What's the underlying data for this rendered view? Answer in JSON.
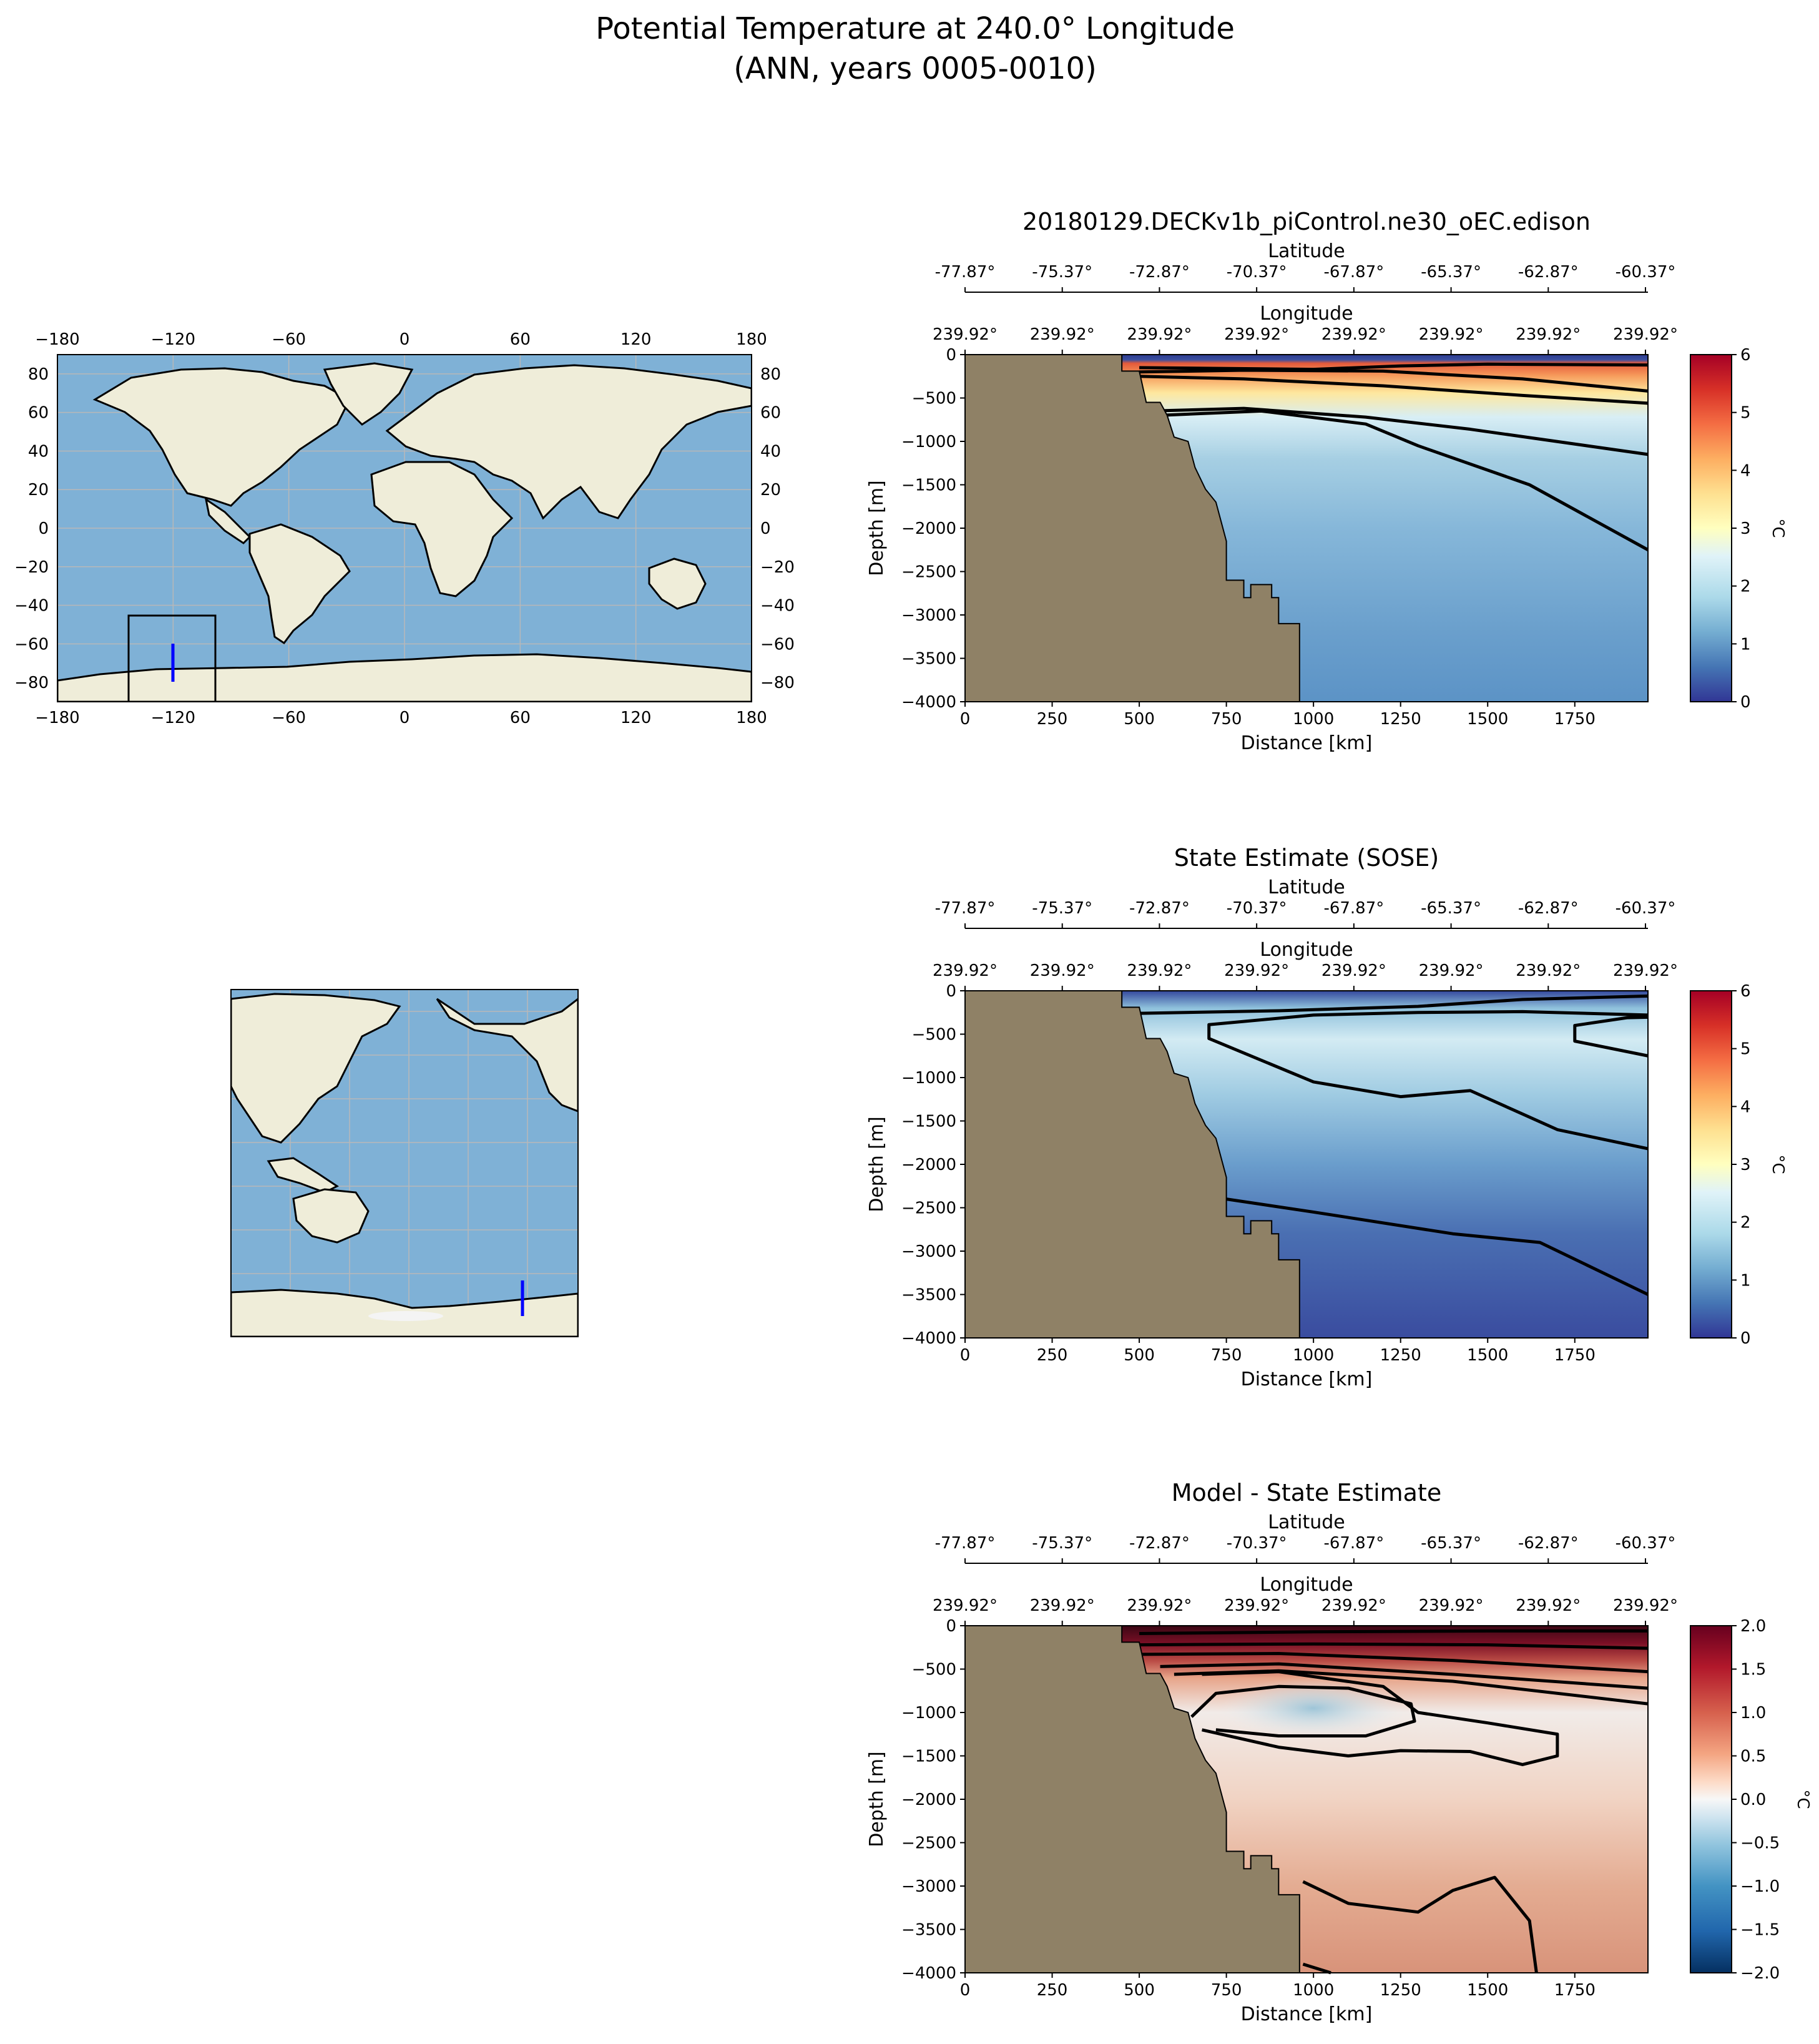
{
  "figure": {
    "title_line1": "Potential Temperature at 240.0° Longitude",
    "title_line2": "(ANN, years 0005-0010)"
  },
  "map": {
    "lon_ticks": [
      "−180",
      "−120",
      "−60",
      "0",
      "60",
      "120",
      "180"
    ],
    "lat_ticks": [
      "80",
      "60",
      "40",
      "20",
      "0",
      "−20",
      "−40",
      "−60",
      "−80"
    ],
    "section_lon": 240,
    "section_lat_range": [
      -77.87,
      -60.37
    ],
    "region_box": {
      "lon": [
        -145,
        -100
      ],
      "lat": [
        -90,
        -45
      ]
    }
  },
  "colorbars": {
    "temp": {
      "ticks": [
        "0",
        "1",
        "2",
        "3",
        "4",
        "5",
        "6"
      ],
      "unit": "°C"
    },
    "diff": {
      "ticks": [
        "−2.0",
        "−1.5",
        "−1.0",
        "−0.5",
        "0.0",
        "0.5",
        "1.0",
        "1.5",
        "2.0"
      ],
      "unit": "°C"
    }
  },
  "chart_data": [
    {
      "type": "heatmap",
      "title": "20180129.DECKv1b_piControl.ne30_oEC.edison",
      "xlabel": "Distance [km]",
      "ylabel": "Depth [m]",
      "top_axis_1_label": "Latitude",
      "top_axis_2_label": "Longitude",
      "lat_ticks": [
        "-77.87°",
        "-75.37°",
        "-72.87°",
        "-70.37°",
        "-67.87°",
        "-65.37°",
        "-62.87°",
        "-60.37°"
      ],
      "lon_ticks": [
        "239.92°",
        "239.92°",
        "239.92°",
        "239.92°",
        "239.92°",
        "239.92°",
        "239.92°",
        "239.92°"
      ],
      "x_ticks": [
        "0",
        "250",
        "500",
        "750",
        "1000",
        "1250",
        "1500",
        "1750"
      ],
      "y_ticks": [
        "0",
        "−500",
        "−1000",
        "−1500",
        "−2000",
        "−2500",
        "−3000",
        "−3500",
        "−4000"
      ],
      "xlim": [
        0,
        1960
      ],
      "ylim": [
        -4000,
        0
      ],
      "colorbar": {
        "label": "°C",
        "range": [
          0,
          6
        ],
        "colormap": "RdYlBu_r"
      },
      "contours": [
        {
          "level": 0.5,
          "points": [
            [
              500,
              -150
            ],
            [
              1000,
              -170
            ],
            [
              1250,
              -130
            ],
            [
              1500,
              -110
            ],
            [
              1960,
              -120
            ]
          ]
        },
        {
          "level": 2.5,
          "points": [
            [
              500,
              -200
            ],
            [
              800,
              -180
            ],
            [
              1200,
              -190
            ],
            [
              1600,
              -280
            ],
            [
              1960,
              -420
            ]
          ]
        },
        {
          "level": 2.0,
          "points": [
            [
              500,
              -250
            ],
            [
              800,
              -280
            ],
            [
              1200,
              -360
            ],
            [
              1600,
              -470
            ],
            [
              1960,
              -560
            ]
          ]
        },
        {
          "level": 1.5,
          "points": [
            [
              530,
              -650
            ],
            [
              800,
              -620
            ],
            [
              1150,
              -720
            ],
            [
              1450,
              -860
            ],
            [
              1960,
              -1150
            ]
          ]
        },
        {
          "level": 1.0,
          "points": [
            [
              560,
              -700
            ],
            [
              850,
              -650
            ],
            [
              1150,
              -800
            ],
            [
              1300,
              -1050
            ],
            [
              1620,
              -1500
            ],
            [
              1960,
              -2250
            ]
          ]
        }
      ]
    },
    {
      "type": "heatmap",
      "title": "State Estimate (SOSE)",
      "xlabel": "Distance [km]",
      "ylabel": "Depth [m]",
      "top_axis_1_label": "Latitude",
      "top_axis_2_label": "Longitude",
      "lat_ticks": [
        "-77.87°",
        "-75.37°",
        "-72.87°",
        "-70.37°",
        "-67.87°",
        "-65.37°",
        "-62.87°",
        "-60.37°"
      ],
      "lon_ticks": [
        "239.92°",
        "239.92°",
        "239.92°",
        "239.92°",
        "239.92°",
        "239.92°",
        "239.92°",
        "239.92°"
      ],
      "x_ticks": [
        "0",
        "250",
        "500",
        "750",
        "1000",
        "1250",
        "1500",
        "1750"
      ],
      "y_ticks": [
        "0",
        "−500",
        "−1000",
        "−1500",
        "−2000",
        "−2500",
        "−3000",
        "−3500",
        "−4000"
      ],
      "xlim": [
        0,
        1960
      ],
      "ylim": [
        -4000,
        0
      ],
      "colorbar": {
        "label": "°C",
        "range": [
          0,
          6
        ],
        "colormap": "RdYlBu_r"
      },
      "contours": [
        {
          "level": 0.5,
          "points": [
            [
              500,
              -260
            ],
            [
              900,
              -230
            ],
            [
              1300,
              -180
            ],
            [
              1600,
              -100
            ],
            [
              1960,
              -60
            ]
          ]
        },
        {
          "level": 1.5,
          "points": [
            [
              1960,
              -750
            ],
            [
              1750,
              -580
            ],
            [
              1750,
              -400
            ],
            [
              1900,
              -310
            ],
            [
              1960,
              -305
            ]
          ]
        },
        {
          "level": 1.0,
          "points": [
            [
              1960,
              -1820
            ],
            [
              1700,
              -1600
            ],
            [
              1450,
              -1150
            ],
            [
              1250,
              -1220
            ],
            [
              1000,
              -1050
            ],
            [
              700,
              -550
            ],
            [
              700,
              -390
            ],
            [
              1000,
              -280
            ],
            [
              1300,
              -250
            ],
            [
              1600,
              -240
            ],
            [
              1960,
              -280
            ]
          ]
        },
        {
          "level": 0.5,
          "points": [
            [
              750,
              -2400
            ],
            [
              1000,
              -2550
            ],
            [
              1400,
              -2800
            ],
            [
              1650,
              -2900
            ],
            [
              1960,
              -3500
            ]
          ]
        }
      ]
    },
    {
      "type": "heatmap",
      "title": "Model - State Estimate",
      "xlabel": "Distance [km]",
      "ylabel": "Depth [m]",
      "top_axis_1_label": "Latitude",
      "top_axis_2_label": "Longitude",
      "lat_ticks": [
        "-77.87°",
        "-75.37°",
        "-72.87°",
        "-70.37°",
        "-67.87°",
        "-65.37°",
        "-62.87°",
        "-60.37°"
      ],
      "lon_ticks": [
        "239.92°",
        "239.92°",
        "239.92°",
        "239.92°",
        "239.92°",
        "239.92°",
        "239.92°",
        "239.92°"
      ],
      "x_ticks": [
        "0",
        "250",
        "500",
        "750",
        "1000",
        "1250",
        "1500",
        "1750"
      ],
      "y_ticks": [
        "0",
        "−500",
        "−1000",
        "−1500",
        "−2000",
        "−2500",
        "−3000",
        "−3500",
        "−4000"
      ],
      "xlim": [
        0,
        1960
      ],
      "ylim": [
        -4000,
        0
      ],
      "colorbar": {
        "label": "°C",
        "range": [
          -2,
          2
        ],
        "colormap": "RdBu_r"
      },
      "contours": [
        {
          "level": 1.5,
          "points": [
            [
              500,
              -90
            ],
            [
              1000,
              -70
            ],
            [
              1500,
              -60
            ],
            [
              1960,
              -60
            ]
          ]
        },
        {
          "level": 1.0,
          "points": [
            [
              500,
              -220
            ],
            [
              1000,
              -210
            ],
            [
              1500,
              -220
            ],
            [
              1960,
              -260
            ]
          ]
        },
        {
          "level": 0.75,
          "points": [
            [
              500,
              -330
            ],
            [
              900,
              -320
            ],
            [
              1400,
              -400
            ],
            [
              1960,
              -530
            ]
          ]
        },
        {
          "level": 0.5,
          "points": [
            [
              560,
              -470
            ],
            [
              900,
              -440
            ],
            [
              1400,
              -560
            ],
            [
              1960,
              -720
            ]
          ]
        },
        {
          "level": 0.25,
          "points": [
            [
              600,
              -560
            ],
            [
              900,
              -520
            ],
            [
              1400,
              -640
            ],
            [
              1960,
              -900
            ]
          ]
        },
        {
          "level": -0.25,
          "points": [
            [
              650,
              -1050
            ],
            [
              720,
              -780
            ],
            [
              900,
              -700
            ],
            [
              1100,
              -720
            ],
            [
              1280,
              -900
            ],
            [
              1290,
              -1100
            ],
            [
              1150,
              -1270
            ],
            [
              900,
              -1270
            ],
            [
              720,
              -1200
            ]
          ]
        },
        {
          "level": 0.0,
          "points": [
            [
              680,
              -1200
            ],
            [
              900,
              -1400
            ],
            [
              1100,
              -1500
            ],
            [
              1250,
              -1440
            ],
            [
              1450,
              -1450
            ],
            [
              1600,
              -1600
            ],
            [
              1700,
              -1500
            ],
            [
              1700,
              -1250
            ],
            [
              1500,
              -1120
            ],
            [
              1300,
              -1000
            ],
            [
              1200,
              -700
            ],
            [
              900,
              -530
            ],
            [
              680,
              -560
            ]
          ]
        },
        {
          "level": 0.25,
          "points": [
            [
              970,
              -2950
            ],
            [
              1100,
              -3200
            ],
            [
              1300,
              -3300
            ],
            [
              1400,
              -3050
            ],
            [
              1520,
              -2900
            ],
            [
              1620,
              -3400
            ],
            [
              1640,
              -4000
            ]
          ]
        },
        {
          "level": 0.25,
          "points": [
            [
              970,
              -3900
            ],
            [
              1050,
              -4000
            ]
          ]
        }
      ]
    }
  ]
}
